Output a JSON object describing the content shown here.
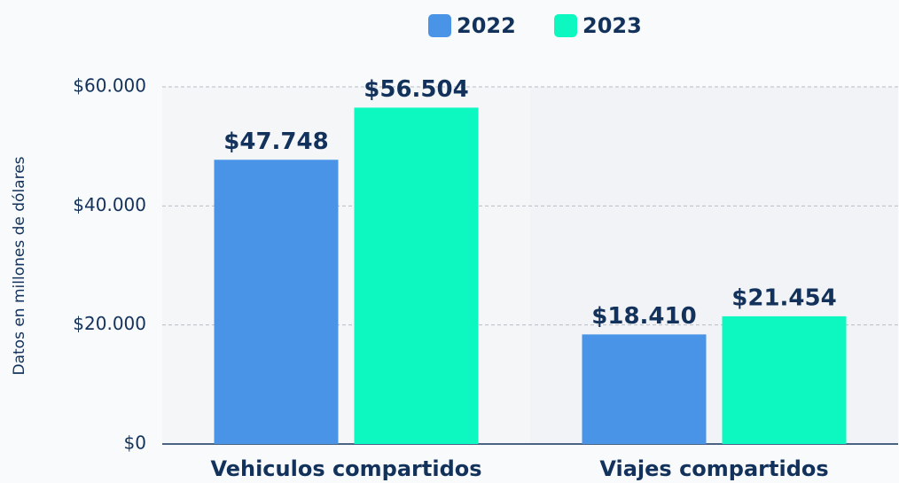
{
  "chart_data": {
    "type": "bar",
    "y_axis_label": "Datos en millones de dólares",
    "categories": [
      "Vehiculos compartidos",
      "Viajes compartidos"
    ],
    "series": [
      {
        "name": "2022",
        "color": "#4a94e8",
        "values": [
          47748,
          18410
        ],
        "value_labels": [
          "$47.748",
          "$18.410"
        ]
      },
      {
        "name": "2023",
        "color": "#0df7c0",
        "values": [
          56504,
          21454
        ],
        "value_labels": [
          "$56.504",
          "$21.454"
        ]
      }
    ],
    "ylim": [
      0,
      60000
    ],
    "yticks": [
      {
        "value": 0,
        "label": "$0"
      },
      {
        "value": 20000,
        "label": "$20.000"
      },
      {
        "value": 40000,
        "label": "$40.000"
      },
      {
        "value": 60000,
        "label": "$60.000"
      }
    ],
    "grid": true,
    "legend": "top"
  }
}
